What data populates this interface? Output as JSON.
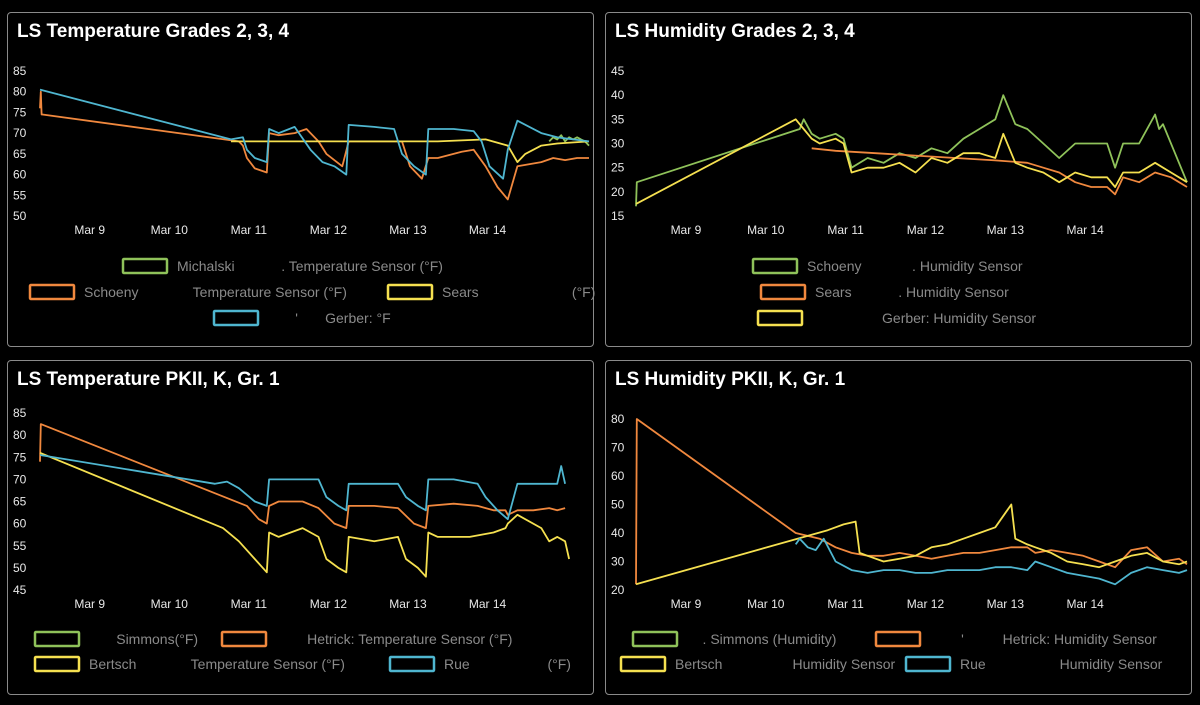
{
  "panels": [
    {
      "title": "LS Temperature Grades 2, 3, 4",
      "chart_data": {
        "type": "line",
        "xlim": [
          "Mar 8 09:00",
          "Mar 14 22:00"
        ],
        "x_ticks": [
          "Mar 9",
          "Mar 10",
          "Mar 11",
          "Mar 12",
          "Mar 13",
          "Mar 14"
        ],
        "ylim": [
          50,
          85
        ],
        "y_ticks": [
          50,
          55,
          60,
          65,
          70,
          75,
          80,
          85
        ],
        "grid": false,
        "legend_position": "bottom",
        "series": [
          {
            "name": "Michalski",
            "legend_label": "Michalski            . Temperature Sensor (°F)",
            "color": "#8fc25a",
            "x": [
              6.4,
              6.45,
              6.5,
              6.55,
              6.6,
              6.65,
              6.7,
              6.75,
              6.8,
              6.85,
              6.9
            ],
            "y": [
              68,
              69,
              68.5,
              69.5,
              68,
              69,
              68.5,
              69,
              68.5,
              68,
              67
            ]
          },
          {
            "name": "Schoeny",
            "legend_label": "Schoeny              Temperature Sensor (°F)",
            "color": "#f0883e",
            "x": [
              0,
              0.01,
              0.02,
              0.03,
              2.5,
              2.55,
              2.6,
              2.7,
              2.85,
              2.88,
              3.0,
              3.2,
              3.35,
              3.5,
              3.6,
              3.8,
              3.88,
              4.0,
              4.4,
              4.55,
              4.65,
              4.8,
              4.88,
              5.0,
              5.3,
              5.45,
              5.6,
              5.75,
              5.88,
              6.0,
              6.3,
              6.45,
              6.6,
              6.75,
              6.9
            ],
            "y": [
              76,
              80,
              74.5,
              74.5,
              68,
              67,
              64,
              61.5,
              60.5,
              70,
              69.5,
              70,
              71,
              68,
              65,
              62,
              68,
              68,
              68,
              68,
              62,
              59,
              64,
              64,
              65.5,
              66,
              62,
              57,
              54,
              62,
              63,
              64,
              63.5,
              64,
              64
            ]
          },
          {
            "name": "Sears",
            "legend_label": "Sears                        (°F)",
            "color": "#f5e050",
            "x": [
              2.4,
              3.0,
              4.0,
              5.0,
              5.6,
              5.88,
              6.0,
              6.1,
              6.3,
              6.5,
              6.9
            ],
            "y": [
              68,
              68,
              68,
              68,
              68.5,
              67,
              63,
              65,
              67,
              67.5,
              68
            ]
          },
          {
            "name": "Gerber",
            "legend_label": "       '       Gerber: °F",
            "color": "#4fb6d0",
            "x": [
              0,
              2.4,
              2.55,
              2.6,
              2.7,
              2.85,
              2.88,
              3.0,
              3.2,
              3.4,
              3.55,
              3.7,
              3.85,
              3.88,
              4.2,
              4.45,
              4.55,
              4.7,
              4.85,
              4.88,
              5.2,
              5.45,
              5.55,
              5.65,
              5.82,
              5.88,
              6.0,
              6.3,
              6.5,
              6.7,
              6.9
            ],
            "y": [
              80.5,
              68.5,
              69,
              66,
              64,
              63,
              71,
              70,
              71.5,
              66,
              63,
              62,
              60,
              72,
              71.5,
              71,
              65,
              62,
              60,
              71,
              71,
              70.5,
              68,
              62,
              59,
              66,
              73,
              70,
              69,
              68.5,
              68
            ]
          }
        ]
      }
    },
    {
      "title": "LS Humidity Grades 2, 3, 4",
      "chart_data": {
        "type": "line",
        "xlim": [
          "Mar 8 09:00",
          "Mar 14 22:00"
        ],
        "x_ticks": [
          "Mar 9",
          "Mar 10",
          "Mar 11",
          "Mar 12",
          "Mar 13",
          "Mar 14"
        ],
        "ylim": [
          15,
          45
        ],
        "y_ticks": [
          15,
          20,
          25,
          30,
          35,
          40,
          45
        ],
        "grid": false,
        "legend_position": "bottom",
        "series": [
          {
            "name": "Schoeny",
            "legend_label": "Schoeny             . Humidity Sensor",
            "color": "#8fc25a",
            "x": [
              0,
              0.01,
              2.05,
              2.1,
              2.2,
              2.3,
              2.5,
              2.6,
              2.7,
              2.9,
              3.1,
              3.3,
              3.5,
              3.7,
              3.9,
              4.1,
              4.3,
              4.5,
              4.6,
              4.75,
              4.9,
              5.1,
              5.3,
              5.5,
              5.7,
              5.9,
              6.0,
              6.1,
              6.3,
              6.5,
              6.55,
              6.6,
              6.75,
              6.9
            ],
            "y": [
              17,
              22,
              33,
              35,
              32,
              31,
              32,
              31,
              25,
              27,
              26,
              28,
              27,
              29,
              28,
              31,
              33,
              35,
              40,
              34,
              33,
              30,
              27,
              30,
              30,
              30,
              25,
              30,
              30,
              36,
              33,
              34,
              28,
              22
            ]
          },
          {
            "name": "Sears",
            "legend_label": "Sears            . Humidity Sensor",
            "color": "#f0883e",
            "x": [
              2.2,
              2.5,
              3.0,
              3.5,
              4.0,
              4.5,
              4.9,
              5.1,
              5.3,
              5.5,
              5.7,
              5.9,
              6.0,
              6.1,
              6.3,
              6.5,
              6.7,
              6.9
            ],
            "y": [
              29,
              28.5,
              28,
              27.5,
              27,
              26.5,
              26,
              25,
              24,
              22,
              21,
              21,
              19.5,
              23,
              22,
              24,
              23,
              21
            ]
          },
          {
            "name": "Gerber",
            "legend_label": "                  Gerber: Humidity Sensor",
            "color": "#f5e050",
            "x": [
              0,
              2.0,
              2.05,
              2.1,
              2.2,
              2.3,
              2.5,
              2.6,
              2.7,
              2.9,
              3.1,
              3.3,
              3.5,
              3.7,
              3.9,
              4.1,
              4.3,
              4.5,
              4.6,
              4.75,
              4.9,
              5.1,
              5.3,
              5.5,
              5.7,
              5.9,
              6.0,
              6.1,
              6.3,
              6.5,
              6.7,
              6.9
            ],
            "y": [
              17.5,
              35,
              34,
              33,
              31,
              30,
              31,
              30,
              24,
              25,
              25,
              26,
              24,
              27,
              26,
              28,
              28,
              27,
              32,
              26,
              25,
              24,
              22,
              24,
              23,
              23,
              21,
              24,
              24,
              26,
              24,
              22
            ]
          }
        ]
      }
    },
    {
      "title": "LS Temperature PKII, K, Gr. 1",
      "chart_data": {
        "type": "line",
        "xlim": [
          "Mar 8 09:00",
          "Mar 14 22:00"
        ],
        "x_ticks": [
          "Mar 9",
          "Mar 10",
          "Mar 11",
          "Mar 12",
          "Mar 13",
          "Mar 14"
        ],
        "ylim": [
          45,
          85
        ],
        "y_ticks": [
          45,
          50,
          55,
          60,
          65,
          70,
          75,
          80,
          85
        ],
        "grid": false,
        "legend_position": "bottom",
        "series": [
          {
            "name": "Simmons",
            "legend_label": "       Simmons(°F)",
            "color": "#8fc25a",
            "x": [],
            "y": []
          },
          {
            "name": "Hetrick",
            "legend_label": "        Hetrick: Temperature Sensor (°F)",
            "color": "#f0883e",
            "x": [
              0,
              0.01,
              2.6,
              2.75,
              2.85,
              2.88,
              3.0,
              3.3,
              3.5,
              3.7,
              3.85,
              3.88,
              4.2,
              4.5,
              4.7,
              4.85,
              4.88,
              5.2,
              5.5,
              5.7,
              5.85,
              5.88,
              6.0,
              6.2,
              6.4,
              6.5,
              6.6
            ],
            "y": [
              74,
              82.5,
              64,
              61,
              60,
              64,
              65,
              65,
              63.5,
              60,
              59,
              64,
              64,
              63.5,
              60,
              59,
              64,
              64.5,
              64,
              63,
              63,
              62,
              63,
              63,
              63.5,
              63,
              63.5
            ]
          },
          {
            "name": "Bertsch",
            "legend_label": "Bertsch              Temperature Sensor (°F)",
            "color": "#f5e050",
            "x": [
              0,
              2.3,
              2.5,
              2.7,
              2.85,
              2.88,
              3.0,
              3.3,
              3.5,
              3.6,
              3.75,
              3.85,
              3.88,
              4.2,
              4.5,
              4.6,
              4.75,
              4.85,
              4.88,
              5.0,
              5.2,
              5.4,
              5.7,
              5.85,
              5.88,
              6.0,
              6.3,
              6.4,
              6.5,
              6.6,
              6.65
            ],
            "y": [
              76,
              59,
              56,
              52,
              49,
              58,
              57,
              59,
              57,
              52,
              50,
              49,
              57,
              56,
              57,
              52,
              50,
              48,
              58,
              57,
              57,
              57,
              58,
              59,
              60,
              62,
              59,
              56,
              57,
              56,
              52
            ]
          },
          {
            "name": "Rue",
            "legend_label": "Rue                    (°F)",
            "color": "#4fb6d0",
            "x": [
              0,
              2.2,
              2.35,
              2.5,
              2.7,
              2.85,
              2.88,
              3.2,
              3.5,
              3.6,
              3.75,
              3.85,
              3.88,
              4.2,
              4.5,
              4.6,
              4.75,
              4.85,
              4.88,
              5.2,
              5.5,
              5.6,
              5.75,
              5.88,
              6.0,
              6.3,
              6.5,
              6.55,
              6.6
            ],
            "y": [
              75.5,
              69,
              69.5,
              68,
              65,
              64,
              70,
              70,
              70,
              66,
              64,
              63,
              69,
              69,
              69,
              66,
              64,
              63,
              70,
              70,
              69,
              66,
              63,
              61,
              69,
              69,
              69,
              73,
              69
            ]
          }
        ]
      }
    },
    {
      "title": "LS Humidity PKII, K, Gr. 1",
      "chart_data": {
        "type": "line",
        "xlim": [
          "Mar 8 09:00",
          "Mar 14 22:00"
        ],
        "x_ticks": [
          "Mar 9",
          "Mar 10",
          "Mar 11",
          "Mar 12",
          "Mar 13",
          "Mar 14"
        ],
        "ylim": [
          20,
          80
        ],
        "y_ticks": [
          20,
          30,
          40,
          50,
          60,
          70,
          80
        ],
        "grid": false,
        "legend_position": "bottom",
        "series": [
          {
            "name": "Simmons",
            "legend_label": "    . Simmons (Humidity)",
            "color": "#8fc25a",
            "x": [],
            "y": []
          },
          {
            "name": "Hetrick",
            "legend_label": "        '          Hetrick: Humidity Sensor",
            "color": "#f0883e",
            "x": [
              0,
              0.01,
              2.0,
              2.3,
              2.5,
              2.7,
              2.9,
              3.1,
              3.3,
              3.5,
              3.7,
              3.9,
              4.1,
              4.3,
              4.5,
              4.7,
              4.9,
              5.0,
              5.2,
              5.4,
              5.6,
              5.8,
              6.0,
              6.2,
              6.4,
              6.6,
              6.8,
              6.9
            ],
            "y": [
              22,
              80,
              40,
              38,
              35,
              33,
              32,
              32,
              33,
              32,
              31,
              32,
              33,
              33,
              34,
              35,
              35,
              33,
              34,
              33,
              32,
              30,
              28,
              34,
              35,
              30,
              31,
              29
            ]
          },
          {
            "name": "Bertsch",
            "legend_label": "Bertsch                  Humidity Sensor",
            "color": "#f5e050",
            "x": [
              0,
              2.4,
              2.6,
              2.75,
              2.8,
              2.9,
              3.1,
              3.3,
              3.5,
              3.7,
              3.9,
              4.1,
              4.3,
              4.5,
              4.65,
              4.7,
              4.75,
              4.9,
              5.0,
              5.2,
              5.4,
              5.6,
              5.8,
              6.0,
              6.2,
              6.4,
              6.6,
              6.8,
              6.9
            ],
            "y": [
              22,
              41,
              43,
              44,
              33,
              32,
              30,
              31,
              32,
              35,
              36,
              38,
              40,
              42,
              48,
              50,
              38,
              36,
              35,
              33,
              30,
              29,
              28,
              30,
              32,
              33,
              30,
              29,
              30
            ]
          },
          {
            "name": "Rue",
            "legend_label": "Rue                   Humidity Sensor",
            "color": "#4fb6d0",
            "x": [
              2.0,
              2.05,
              2.15,
              2.25,
              2.35,
              2.5,
              2.7,
              2.9,
              3.1,
              3.3,
              3.5,
              3.7,
              3.9,
              4.1,
              4.3,
              4.5,
              4.7,
              4.9,
              5.0,
              5.2,
              5.4,
              5.6,
              5.8,
              6.0,
              6.2,
              6.4,
              6.6,
              6.8,
              6.9
            ],
            "y": [
              36,
              38,
              35,
              34,
              38,
              30,
              27,
              26,
              27,
              27,
              26,
              26,
              27,
              27,
              27,
              28,
              28,
              27,
              30,
              28,
              26,
              25,
              24,
              22,
              26,
              28,
              27,
              26,
              27
            ]
          }
        ]
      }
    }
  ]
}
